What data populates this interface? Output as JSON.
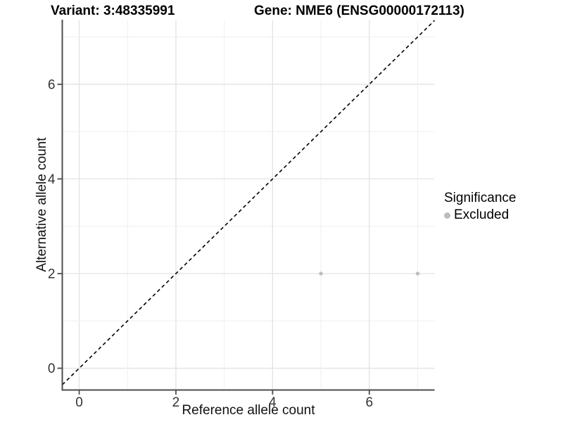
{
  "header": {
    "variant_title": "Variant: 3:48335991",
    "gene_title": "Gene: NME6 (ENSG00000172113)"
  },
  "axes": {
    "x_label": "Reference allele count",
    "y_label": "Alternative allele count"
  },
  "legend": {
    "title": "Significance",
    "items": [
      {
        "label": "Excluded",
        "color": "#BDBDBD"
      }
    ]
  },
  "colors": {
    "point": "#BDBDBD",
    "grid_major": "#E2E2E2",
    "grid_minor": "#EFEFEF",
    "axis_line": "#4D4D4D",
    "tick_label": "#333333",
    "reference_line": "#000000"
  },
  "chart_data": {
    "type": "scatter",
    "title": "Variant: 3:48335991 — Gene: NME6 (ENSG00000172113)",
    "xlabel": "Reference allele count",
    "ylabel": "Alternative allele count",
    "x_ticks": [
      0,
      2,
      4,
      6
    ],
    "y_ticks": [
      0,
      2,
      4,
      6
    ],
    "grid_positions": [
      0,
      1,
      2,
      3,
      4,
      5,
      6,
      7
    ],
    "xlim": [
      -0.35,
      7.35
    ],
    "ylim": [
      -0.46,
      7.35
    ],
    "grid": "on",
    "legend_position": "right",
    "series": [
      {
        "name": "Excluded",
        "color": "#BDBDBD",
        "points": [
          [
            5,
            2
          ],
          [
            7,
            2
          ]
        ]
      }
    ],
    "reference_line": {
      "kind": "identity",
      "slope": 1,
      "intercept": 0,
      "style": "dashed",
      "color": "#000000"
    }
  }
}
